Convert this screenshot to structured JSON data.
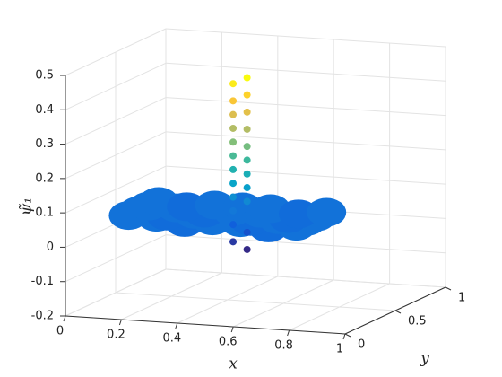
{
  "chart_data": {
    "type": "scatter3d",
    "xlabel": "x",
    "ylabel": "y",
    "zlabel": "ψ̃₁",
    "xlim": [
      0,
      1
    ],
    "ylim": [
      0,
      1
    ],
    "zlim": [
      -0.2,
      0.5
    ],
    "xticks": [
      0,
      0.2,
      0.4,
      0.6,
      0.8,
      1
    ],
    "yticks": [
      0,
      0.5,
      1
    ],
    "zticks": [
      -0.2,
      -0.1,
      0,
      0.1,
      0.2,
      0.3,
      0.4,
      0.5
    ],
    "grid": true,
    "colormap": [
      "#352a87",
      "#0f5cdd",
      "#1481d6",
      "#06a4ca",
      "#2eb7a4",
      "#87bf77",
      "#d1bb59",
      "#fec832",
      "#f9fb0e"
    ],
    "series": [
      {
        "x": [
          0.1,
          0.2,
          0.3,
          0.4,
          0.5,
          0.6,
          0.7,
          0.1,
          0.2,
          0.3,
          0.4,
          0.5,
          0.6,
          0.7,
          0.1,
          0.2,
          0.3,
          0.4,
          0.5,
          0.6,
          0.7,
          0.1,
          0.2,
          0.3,
          0.4,
          0.5,
          0.6,
          0.7,
          0.42,
          0.42,
          0.42,
          0.42,
          0.42,
          0.42,
          0.42,
          0.42,
          0.42,
          0.42,
          0.42,
          0.42,
          0.47,
          0.47,
          0.47,
          0.47,
          0.47,
          0.47,
          0.47,
          0.47,
          0.47,
          0.47,
          0.47,
          0.47
        ],
        "y": [
          0.35,
          0.35,
          0.35,
          0.35,
          0.35,
          0.35,
          0.35,
          0.45,
          0.45,
          0.45,
          0.45,
          0.45,
          0.45,
          0.45,
          0.55,
          0.55,
          0.55,
          0.55,
          0.55,
          0.55,
          0.55,
          0.65,
          0.65,
          0.65,
          0.65,
          0.65,
          0.65,
          0.65,
          0.5,
          0.5,
          0.5,
          0.5,
          0.5,
          0.5,
          0.5,
          0.5,
          0.5,
          0.5,
          0.5,
          0.5,
          0.5,
          0.5,
          0.5,
          0.5,
          0.5,
          0.5,
          0.5,
          0.5,
          0.5,
          0.5,
          0.5,
          0.5
        ],
        "z": [
          0.05,
          0.05,
          0.04,
          0.05,
          0.05,
          0.04,
          0.05,
          0.05,
          0.04,
          0.05,
          0.05,
          0.04,
          0.05,
          0.05,
          0.05,
          0.05,
          0.04,
          0.05,
          0.05,
          0.04,
          0.05,
          0.05,
          0.04,
          0.05,
          0.05,
          0.05,
          0.04,
          0.05,
          -0.03,
          0.02,
          0.06,
          0.1,
          0.14,
          0.18,
          0.22,
          0.26,
          0.3,
          0.34,
          0.38,
          0.43,
          -0.05,
          0.0,
          0.05,
          0.09,
          0.13,
          0.17,
          0.21,
          0.25,
          0.3,
          0.35,
          0.4,
          0.45
        ]
      }
    ]
  }
}
